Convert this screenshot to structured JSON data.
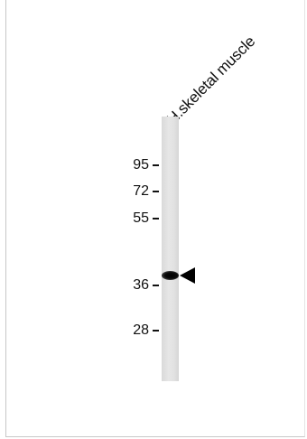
{
  "lane": {
    "label": "H.skeletal muscle"
  },
  "markers": [
    {
      "label": "95"
    },
    {
      "label": "72"
    },
    {
      "label": "55"
    },
    {
      "label": "36"
    },
    {
      "label": "28"
    }
  ],
  "colors": {
    "band": "#000000",
    "lane": "#e2e2e2",
    "text": "#111111"
  },
  "icons": {
    "band_pointer": "left-triangle-arrow-icon"
  }
}
